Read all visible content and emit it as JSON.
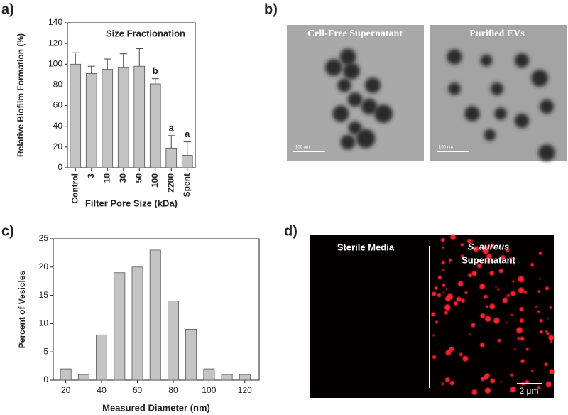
{
  "panel_labels": [
    "a)",
    "b)",
    "c)",
    "d)"
  ],
  "chart_data": [
    {
      "type": "bar",
      "title": "Size Fractionation",
      "x_label": "Filter Pore Size (kDa)",
      "y_label": "Relative Biofilm Formation (%)",
      "categories": [
        "Control",
        "3",
        "10",
        "30",
        "50",
        "100",
        "2200",
        "Spent"
      ],
      "values": [
        100,
        91,
        95,
        97,
        98,
        81,
        19,
        12
      ],
      "errors": [
        11,
        7,
        10,
        13,
        17,
        5,
        12,
        13
      ],
      "significance_labels": [
        null,
        null,
        null,
        null,
        null,
        "b",
        "a",
        "a"
      ],
      "color": "#c4c4c4",
      "ylim": [
        0,
        140
      ],
      "yticks": [
        0,
        20,
        40,
        60,
        80,
        100,
        120,
        140
      ]
    },
    {
      "type": "histogram",
      "x_label": "Measured Diameter (nm)",
      "y_label": "Percent of Vesicles",
      "x": [
        20,
        30,
        40,
        50,
        60,
        70,
        80,
        90,
        100,
        110,
        120
      ],
      "values": [
        2,
        1,
        8,
        19,
        20,
        23,
        14,
        9,
        2,
        1,
        1
      ],
      "color": "#c4c4c4",
      "xlim": [
        13,
        128
      ],
      "xticks": [
        20,
        40,
        60,
        80,
        100,
        120
      ],
      "ylim": [
        0,
        25
      ],
      "yticks": [
        0,
        5,
        10,
        15,
        20,
        25
      ]
    }
  ],
  "micrographs": [
    {
      "label": "Cell-Free Supernatant",
      "scale_bar": "100 nm"
    },
    {
      "label": "Purified EVs",
      "scale_bar": "100 nm"
    }
  ],
  "fluorescence": {
    "left_label": "Sterile Media",
    "right_label_species": "S. aureus",
    "right_label": "Supernatant",
    "scale_bar": "2 μm"
  }
}
